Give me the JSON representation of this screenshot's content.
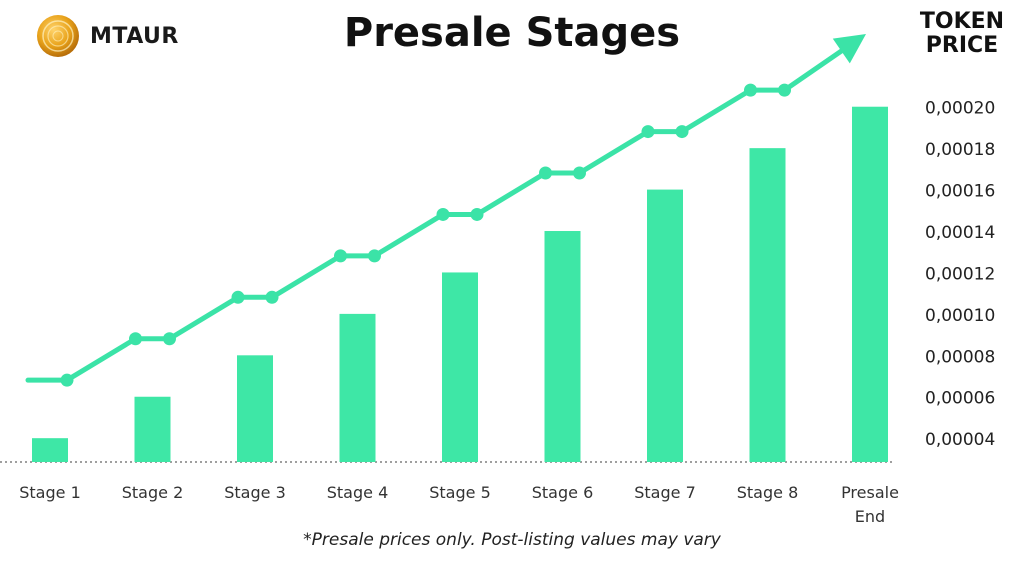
{
  "brand": {
    "name": "MTAUR",
    "logo_icon": "gold-coin-logo-icon"
  },
  "header": {
    "title": "Presale Stages"
  },
  "axis_title": {
    "line1": "TOKEN",
    "line2": "PRICE"
  },
  "footnote": "*Presale prices only. Post-listing values may vary",
  "colors": {
    "bar": "#3ee7a6",
    "line": "#3be3a7",
    "text": "#111111",
    "baseline": "#666666",
    "logo_gold": "#e8a21a"
  },
  "chart_data": {
    "type": "bar",
    "title": "Presale Stages",
    "ylabel": "TOKEN PRICE",
    "categories": [
      "Stage 1",
      "Stage 2",
      "Stage 3",
      "Stage 4",
      "Stage 5",
      "Stage 6",
      "Stage 7",
      "Stage 8",
      "Presale End"
    ],
    "values": [
      4e-05,
      6e-05,
      8e-05,
      0.0001,
      0.00012,
      0.00014,
      0.00016,
      0.00018,
      0.0002
    ],
    "yticks": [
      "0,00004",
      "0,00006",
      "0,00008",
      "0,00010",
      "0,00012",
      "0,00014",
      "0,00016",
      "0,00018",
      "0,00020"
    ],
    "ylim": [
      2.85e-05,
      0.00021
    ],
    "grid": false,
    "annotation": "upward-trend arrow above bars"
  }
}
